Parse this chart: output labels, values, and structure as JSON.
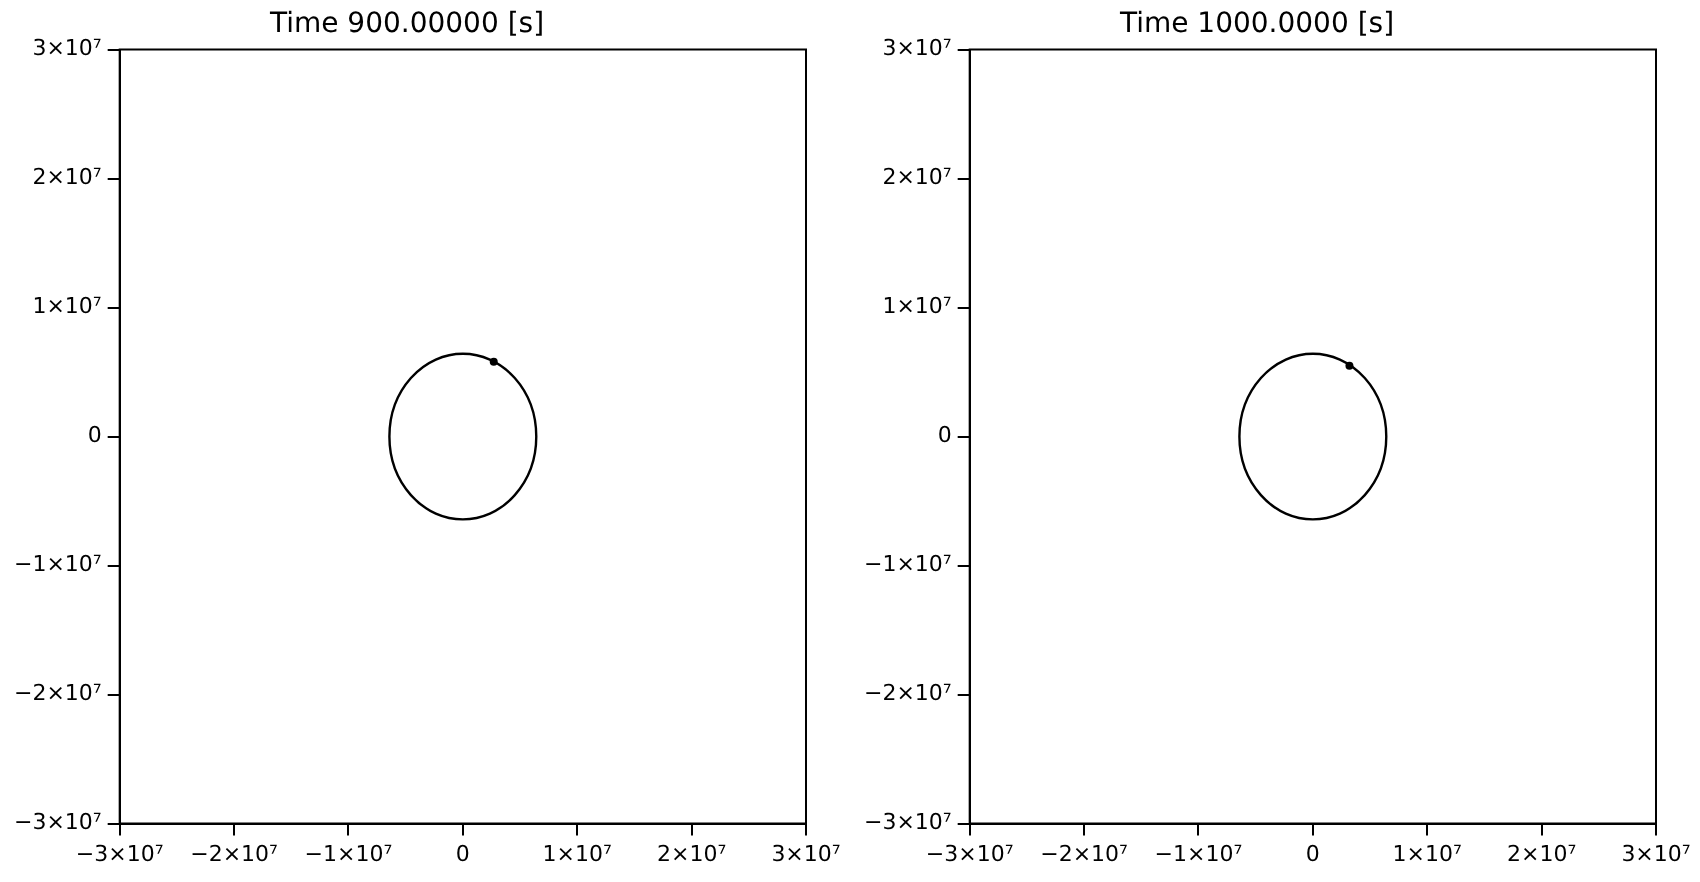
{
  "chart_data": [
    {
      "type": "scatter",
      "title": "Time 900.00000 [s]",
      "marker": "circle",
      "grid": false,
      "legend": false,
      "xlim": [
        -30000000.0,
        30000000.0
      ],
      "ylim": [
        -30000000.0,
        30000000.0
      ],
      "xticks": [
        {
          "value": -30000000.0,
          "label": "−3×10⁷"
        },
        {
          "value": -20000000.0,
          "label": "−2×10⁷"
        },
        {
          "value": -10000000.0,
          "label": "−1×10⁷"
        },
        0,
        {
          "value": 10000000.0,
          "label": "1×10⁷"
        },
        {
          "value": 20000000.0,
          "label": "2×10⁷"
        },
        {
          "value": 30000000.0,
          "label": "3×10⁷"
        }
      ],
      "yticks": [
        {
          "value": -30000000.0,
          "label": "−3×10⁷"
        },
        {
          "value": -20000000.0,
          "label": "−2×10⁷"
        },
        {
          "value": -10000000.0,
          "label": "−1×10⁷"
        },
        0,
        {
          "value": 10000000.0,
          "label": "1×10⁷"
        },
        {
          "value": 20000000.0,
          "label": "2×10⁷"
        },
        {
          "value": 30000000.0,
          "label": "3×10⁷"
        }
      ],
      "series": [
        {
          "color": "#000000",
          "x": [
            2700000.0
          ],
          "values": [
            5800000.0
          ]
        }
      ]
    },
    {
      "type": "scatter",
      "title": "Time 1000.0000 [s]",
      "marker": "circle",
      "grid": false,
      "legend": false,
      "xlim": [
        -30000000.0,
        30000000.0
      ],
      "ylim": [
        -30000000.0,
        30000000.0
      ],
      "xticks": [
        {
          "value": -30000000.0,
          "label": "−3×10⁷"
        },
        {
          "value": -20000000.0,
          "label": "−2×10⁷"
        },
        {
          "value": -10000000.0,
          "label": "−1×10⁷"
        },
        0,
        {
          "value": 10000000.0,
          "label": "1×10⁷"
        },
        {
          "value": 20000000.0,
          "label": "2×10⁷"
        },
        {
          "value": 30000000.0,
          "label": "3×10⁷"
        }
      ],
      "yticks": [
        {
          "value": -30000000.0,
          "label": "−3×10⁷"
        },
        {
          "value": -20000000.0,
          "label": "−2×10⁷"
        },
        {
          "value": -10000000.0,
          "label": "−1×10⁷"
        },
        0,
        {
          "value": 10000000.0,
          "label": "1×10⁷"
        },
        {
          "value": 20000000.0,
          "label": "2×10⁷"
        },
        {
          "value": 30000000.0,
          "label": "3×10⁷"
        }
      ],
      "series": [
        {
          "color": "#000000",
          "x": [
            3200000.0
          ],
          "values": [
            5500000.0
          ]
        }
      ]
    }
  ]
}
